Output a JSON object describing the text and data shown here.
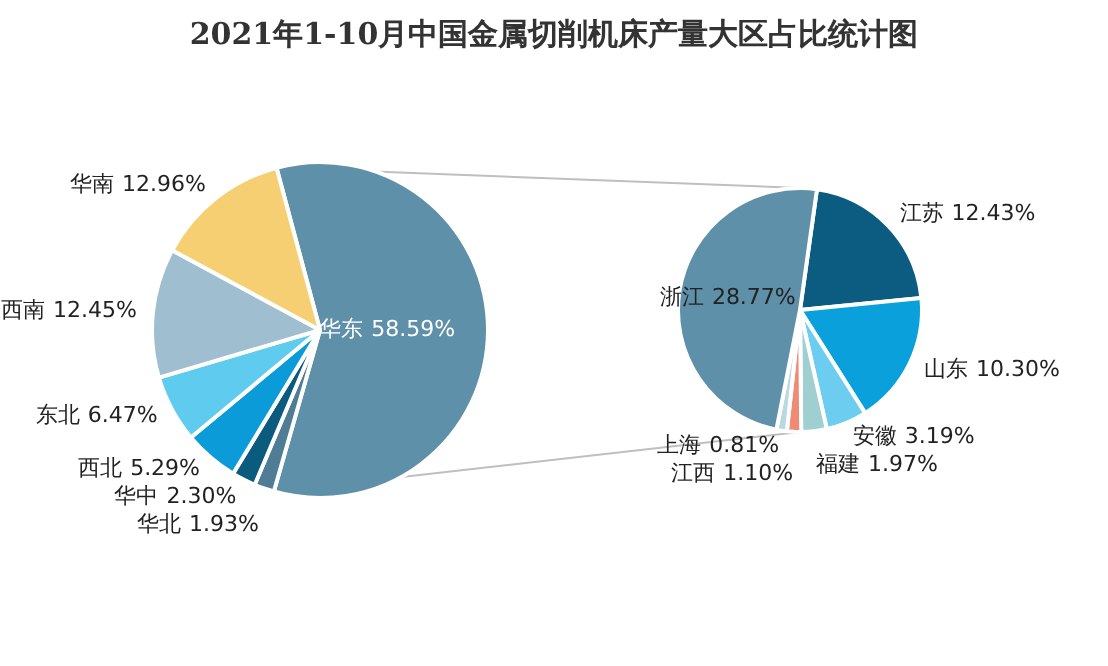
{
  "chart_data": [
    {
      "type": "pie",
      "title": "2021年1-10月中国金属切削机床产量大区占比统计图",
      "categories": [
        "华东",
        "华北",
        "华中",
        "西北",
        "东北",
        "西南",
        "华南"
      ],
      "values": [
        58.59,
        1.93,
        2.3,
        5.29,
        6.47,
        12.45,
        12.96
      ],
      "colors": [
        "#5e90a9",
        "#4e7d95",
        "#0b5b7f",
        "#0b9bd8",
        "#5fcbef",
        "#9fbfd0",
        "#f5cf71"
      ],
      "value_labels": [
        "58.59%",
        "1.93%",
        "2.30%",
        "5.29%",
        "6.47%",
        "12.45%",
        "12.96%"
      ]
    },
    {
      "type": "pie",
      "categories": [
        "江苏",
        "山东",
        "安徽",
        "福建",
        "江西",
        "上海",
        "浙江"
      ],
      "values": [
        12.43,
        10.3,
        3.19,
        1.97,
        1.1,
        0.81,
        28.77
      ],
      "colors": [
        "#0b5c80",
        "#0aa0dc",
        "#6ccdf0",
        "#9fcfd0",
        "#ef8a75",
        "#b9d8e0",
        "#5e90a9"
      ],
      "value_labels": [
        "12.43%",
        "10.30%",
        "3.19%",
        "1.97%",
        "1.10%",
        "0.81%",
        "28.77%"
      ]
    }
  ]
}
